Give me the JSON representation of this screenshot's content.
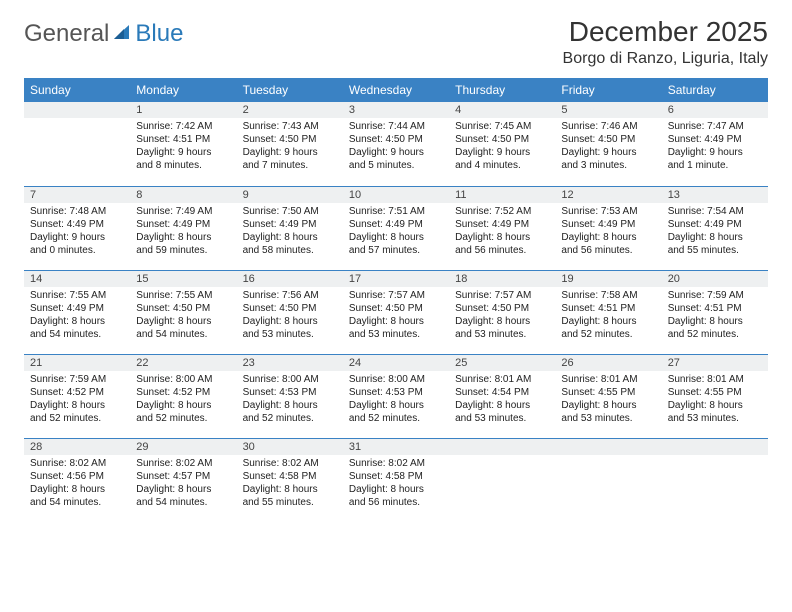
{
  "logo": {
    "text1": "General",
    "text2": "Blue"
  },
  "title": "December 2025",
  "location": "Borgo di Ranzo, Liguria, Italy",
  "colors": {
    "header_bg": "#3a82c4",
    "header_text": "#ffffff",
    "daynum_bg": "#eef0f1",
    "divider": "#3a82c4",
    "text": "#222222",
    "logo_gray": "#555555",
    "logo_blue": "#2a7ab9",
    "page_bg": "#ffffff"
  },
  "typography": {
    "title_fontsize": 28,
    "location_fontsize": 16,
    "header_fontsize": 12,
    "cell_fontsize": 10,
    "daynum_fontsize": 11
  },
  "days_of_week": [
    "Sunday",
    "Monday",
    "Tuesday",
    "Wednesday",
    "Thursday",
    "Friday",
    "Saturday"
  ],
  "weeks": [
    [
      null,
      {
        "n": "1",
        "sunrise": "Sunrise: 7:42 AM",
        "sunset": "Sunset: 4:51 PM",
        "day1": "Daylight: 9 hours",
        "day2": "and 8 minutes."
      },
      {
        "n": "2",
        "sunrise": "Sunrise: 7:43 AM",
        "sunset": "Sunset: 4:50 PM",
        "day1": "Daylight: 9 hours",
        "day2": "and 7 minutes."
      },
      {
        "n": "3",
        "sunrise": "Sunrise: 7:44 AM",
        "sunset": "Sunset: 4:50 PM",
        "day1": "Daylight: 9 hours",
        "day2": "and 5 minutes."
      },
      {
        "n": "4",
        "sunrise": "Sunrise: 7:45 AM",
        "sunset": "Sunset: 4:50 PM",
        "day1": "Daylight: 9 hours",
        "day2": "and 4 minutes."
      },
      {
        "n": "5",
        "sunrise": "Sunrise: 7:46 AM",
        "sunset": "Sunset: 4:50 PM",
        "day1": "Daylight: 9 hours",
        "day2": "and 3 minutes."
      },
      {
        "n": "6",
        "sunrise": "Sunrise: 7:47 AM",
        "sunset": "Sunset: 4:49 PM",
        "day1": "Daylight: 9 hours",
        "day2": "and 1 minute."
      }
    ],
    [
      {
        "n": "7",
        "sunrise": "Sunrise: 7:48 AM",
        "sunset": "Sunset: 4:49 PM",
        "day1": "Daylight: 9 hours",
        "day2": "and 0 minutes."
      },
      {
        "n": "8",
        "sunrise": "Sunrise: 7:49 AM",
        "sunset": "Sunset: 4:49 PM",
        "day1": "Daylight: 8 hours",
        "day2": "and 59 minutes."
      },
      {
        "n": "9",
        "sunrise": "Sunrise: 7:50 AM",
        "sunset": "Sunset: 4:49 PM",
        "day1": "Daylight: 8 hours",
        "day2": "and 58 minutes."
      },
      {
        "n": "10",
        "sunrise": "Sunrise: 7:51 AM",
        "sunset": "Sunset: 4:49 PM",
        "day1": "Daylight: 8 hours",
        "day2": "and 57 minutes."
      },
      {
        "n": "11",
        "sunrise": "Sunrise: 7:52 AM",
        "sunset": "Sunset: 4:49 PM",
        "day1": "Daylight: 8 hours",
        "day2": "and 56 minutes."
      },
      {
        "n": "12",
        "sunrise": "Sunrise: 7:53 AM",
        "sunset": "Sunset: 4:49 PM",
        "day1": "Daylight: 8 hours",
        "day2": "and 56 minutes."
      },
      {
        "n": "13",
        "sunrise": "Sunrise: 7:54 AM",
        "sunset": "Sunset: 4:49 PM",
        "day1": "Daylight: 8 hours",
        "day2": "and 55 minutes."
      }
    ],
    [
      {
        "n": "14",
        "sunrise": "Sunrise: 7:55 AM",
        "sunset": "Sunset: 4:49 PM",
        "day1": "Daylight: 8 hours",
        "day2": "and 54 minutes."
      },
      {
        "n": "15",
        "sunrise": "Sunrise: 7:55 AM",
        "sunset": "Sunset: 4:50 PM",
        "day1": "Daylight: 8 hours",
        "day2": "and 54 minutes."
      },
      {
        "n": "16",
        "sunrise": "Sunrise: 7:56 AM",
        "sunset": "Sunset: 4:50 PM",
        "day1": "Daylight: 8 hours",
        "day2": "and 53 minutes."
      },
      {
        "n": "17",
        "sunrise": "Sunrise: 7:57 AM",
        "sunset": "Sunset: 4:50 PM",
        "day1": "Daylight: 8 hours",
        "day2": "and 53 minutes."
      },
      {
        "n": "18",
        "sunrise": "Sunrise: 7:57 AM",
        "sunset": "Sunset: 4:50 PM",
        "day1": "Daylight: 8 hours",
        "day2": "and 53 minutes."
      },
      {
        "n": "19",
        "sunrise": "Sunrise: 7:58 AM",
        "sunset": "Sunset: 4:51 PM",
        "day1": "Daylight: 8 hours",
        "day2": "and 52 minutes."
      },
      {
        "n": "20",
        "sunrise": "Sunrise: 7:59 AM",
        "sunset": "Sunset: 4:51 PM",
        "day1": "Daylight: 8 hours",
        "day2": "and 52 minutes."
      }
    ],
    [
      {
        "n": "21",
        "sunrise": "Sunrise: 7:59 AM",
        "sunset": "Sunset: 4:52 PM",
        "day1": "Daylight: 8 hours",
        "day2": "and 52 minutes."
      },
      {
        "n": "22",
        "sunrise": "Sunrise: 8:00 AM",
        "sunset": "Sunset: 4:52 PM",
        "day1": "Daylight: 8 hours",
        "day2": "and 52 minutes."
      },
      {
        "n": "23",
        "sunrise": "Sunrise: 8:00 AM",
        "sunset": "Sunset: 4:53 PM",
        "day1": "Daylight: 8 hours",
        "day2": "and 52 minutes."
      },
      {
        "n": "24",
        "sunrise": "Sunrise: 8:00 AM",
        "sunset": "Sunset: 4:53 PM",
        "day1": "Daylight: 8 hours",
        "day2": "and 52 minutes."
      },
      {
        "n": "25",
        "sunrise": "Sunrise: 8:01 AM",
        "sunset": "Sunset: 4:54 PM",
        "day1": "Daylight: 8 hours",
        "day2": "and 53 minutes."
      },
      {
        "n": "26",
        "sunrise": "Sunrise: 8:01 AM",
        "sunset": "Sunset: 4:55 PM",
        "day1": "Daylight: 8 hours",
        "day2": "and 53 minutes."
      },
      {
        "n": "27",
        "sunrise": "Sunrise: 8:01 AM",
        "sunset": "Sunset: 4:55 PM",
        "day1": "Daylight: 8 hours",
        "day2": "and 53 minutes."
      }
    ],
    [
      {
        "n": "28",
        "sunrise": "Sunrise: 8:02 AM",
        "sunset": "Sunset: 4:56 PM",
        "day1": "Daylight: 8 hours",
        "day2": "and 54 minutes."
      },
      {
        "n": "29",
        "sunrise": "Sunrise: 8:02 AM",
        "sunset": "Sunset: 4:57 PM",
        "day1": "Daylight: 8 hours",
        "day2": "and 54 minutes."
      },
      {
        "n": "30",
        "sunrise": "Sunrise: 8:02 AM",
        "sunset": "Sunset: 4:58 PM",
        "day1": "Daylight: 8 hours",
        "day2": "and 55 minutes."
      },
      {
        "n": "31",
        "sunrise": "Sunrise: 8:02 AM",
        "sunset": "Sunset: 4:58 PM",
        "day1": "Daylight: 8 hours",
        "day2": "and 56 minutes."
      },
      null,
      null,
      null
    ]
  ]
}
